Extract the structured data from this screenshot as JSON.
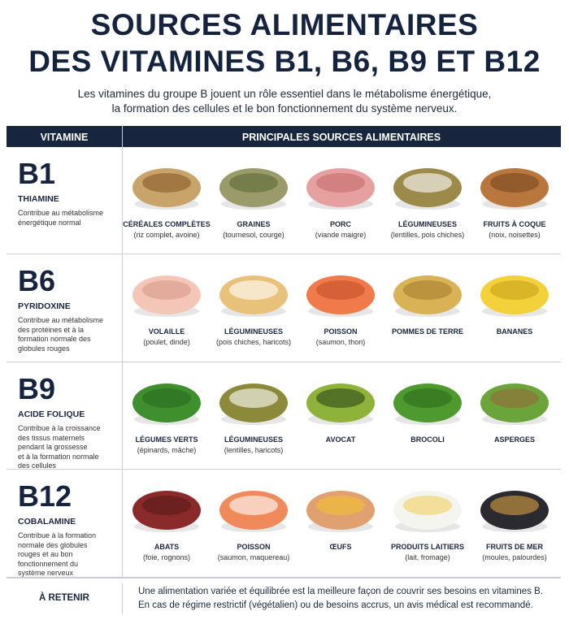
{
  "header": {
    "title_lines": [
      "SOURCES ALIMENTAIRES",
      "DES VITAMINES B1, B6, B9 ET B12"
    ],
    "intro_lines": [
      "Les vitamines du groupe B jouent un rôle essentiel dans le métabolisme énergétique,",
      "la formation des cellules et le bon fonctionnement du système nerveux."
    ]
  },
  "table": {
    "columns": [
      "VITAMINE",
      "PRINCIPALES SOURCES ALIMENTAIRES"
    ],
    "rows": [
      {
        "vitamin": "B1",
        "name": "THIAMINE",
        "description": [
          "Contribue au métabolisme",
          "énergétique normal"
        ],
        "foods": [
          {
            "name": "CÉRÉALES COMPLÈTES",
            "detail": "(riz complet, avoine)"
          },
          {
            "name": "GRAINES",
            "detail": "(tournesol, courge)"
          },
          {
            "name": "PORC",
            "detail": "(viande maigre)"
          },
          {
            "name": "LÉGUMINEUSES",
            "detail": "(lentilles, pois chiches)"
          },
          {
            "name": "FRUITS À COQUE",
            "detail": "(noix, noisettes)"
          }
        ]
      },
      {
        "vitamin": "B6",
        "name": "PYRIDOXINE",
        "description": [
          "Contribue au métabolisme",
          "des protéines et à la",
          "formation normale des",
          "globules rouges"
        ],
        "foods": [
          {
            "name": "VOLAILLE",
            "detail": "(poulet, dinde)"
          },
          {
            "name": "LÉGUMINEUSES",
            "detail": "(pois chiches, haricots)"
          },
          {
            "name": "POISSON",
            "detail": "(saumon, thon)"
          },
          {
            "name": "POMMES DE TERRE",
            "detail": null
          },
          {
            "name": "BANANES",
            "detail": null
          }
        ]
      },
      {
        "vitamin": "B9",
        "name": "ACIDE FOLIQUE",
        "description": [
          "Contribue à la croissance",
          "des tissus maternels",
          "pendant la grossesse",
          "et à la formation normale",
          "des cellules"
        ],
        "foods": [
          {
            "name": "LÉGUMES VERTS",
            "detail": "(épinards, mâche)"
          },
          {
            "name": "LÉGUMINEUSES",
            "detail": "(lentilles, haricots)"
          },
          {
            "name": "AVOCAT",
            "detail": null
          },
          {
            "name": "BROCOLI",
            "detail": null
          },
          {
            "name": "ASPERGES",
            "detail": null
          }
        ]
      },
      {
        "vitamin": "B12",
        "name": "COBALAMINE",
        "description": [
          "Contribue à la formation",
          "normale des globules",
          "rouges et au bon",
          "fonctionnement du",
          "système nerveux"
        ],
        "foods": [
          {
            "name": "ABATS",
            "detail": "(foie, rognons)"
          },
          {
            "name": "POISSON",
            "detail": "(saumon, maquereau)"
          },
          {
            "name": "ŒUFS",
            "detail": null
          },
          {
            "name": "PRODUITS LAITIERS",
            "detail": "(lait, fromage)"
          },
          {
            "name": "FRUITS DE MER",
            "detail": "(moules, palourdes)"
          }
        ]
      }
    ]
  },
  "footer": {
    "label": "À RETENIR",
    "lines": [
      "Une alimentation variée et équilibrée est la meilleure façon de couvrir ses besoins en vitamines B.",
      "En cas de régime restrictif (végétalien) ou de besoins accrus, un avis médical est recommandé."
    ]
  }
}
